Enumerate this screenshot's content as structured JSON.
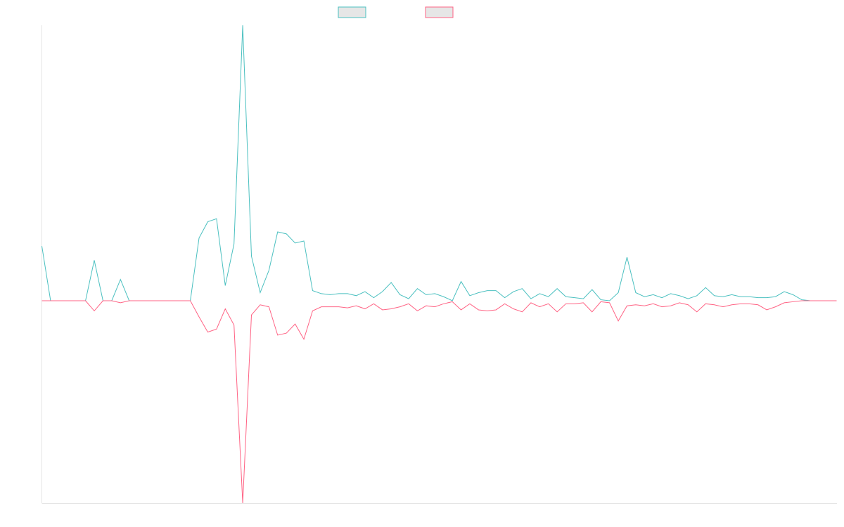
{
  "chart_data": {
    "type": "line",
    "title": "",
    "xlabel": "",
    "ylabel": "",
    "grid": false,
    "legend": "top-center",
    "ylim": [
      -100,
      100
    ],
    "x_count": 92,
    "series": [
      {
        "color": "#4bc0c0",
        "values": [
          27,
          0,
          0,
          0,
          0,
          0,
          20,
          0,
          0,
          10.5,
          0,
          0,
          0,
          0,
          0,
          0,
          0,
          0,
          31,
          39,
          40.5,
          7.5,
          28,
          136,
          22,
          4,
          15,
          34,
          33,
          28.5,
          29.5,
          5,
          3.5,
          3,
          3.5,
          3.5,
          2.5,
          4.5,
          1.5,
          4.5,
          9,
          3,
          1,
          6,
          3,
          3.5,
          2,
          0,
          9.5,
          2.5,
          4,
          5,
          5,
          1.5,
          4.5,
          6,
          1,
          3.5,
          2,
          6,
          2,
          1.5,
          1,
          5.5,
          0.5,
          0,
          4,
          21.5,
          4,
          2,
          3,
          1.5,
          3.5,
          2.5,
          1,
          2.5,
          6.5,
          2.5,
          2,
          3,
          2,
          2,
          1.5,
          1.5,
          2,
          4.5,
          3,
          0.5,
          0,
          0,
          0,
          0
        ]
      },
      {
        "color": "#ff6384",
        "values": [
          0,
          0,
          0,
          0,
          0,
          0,
          -5,
          0,
          0,
          -1,
          0,
          0,
          0,
          0,
          0,
          0,
          0,
          0,
          -8,
          -15.5,
          -14,
          -4,
          -12,
          -100,
          -7,
          -2,
          -3,
          -17,
          -16,
          -11.5,
          -19,
          -5,
          -3,
          -3,
          -3,
          -3.5,
          -2.5,
          -4,
          -1.5,
          -4.5,
          -4,
          -3,
          -1.5,
          -5,
          -2.5,
          -3,
          -1.5,
          -0.5,
          -4.5,
          -1.5,
          -4.5,
          -5,
          -4.5,
          -1.5,
          -4,
          -5.5,
          -1,
          -3,
          -1.5,
          -5.5,
          -1.5,
          -1.5,
          -1,
          -5.5,
          -0.5,
          -1,
          -10,
          -2.5,
          -2,
          -2.5,
          -1.5,
          -3,
          -2.5,
          -1,
          -2,
          -5.5,
          -1.5,
          -2,
          -3,
          -2,
          -1.5,
          -1.5,
          -2,
          -4.5,
          -3,
          -1,
          -0.5,
          0,
          0,
          0,
          0,
          0
        ]
      }
    ]
  }
}
